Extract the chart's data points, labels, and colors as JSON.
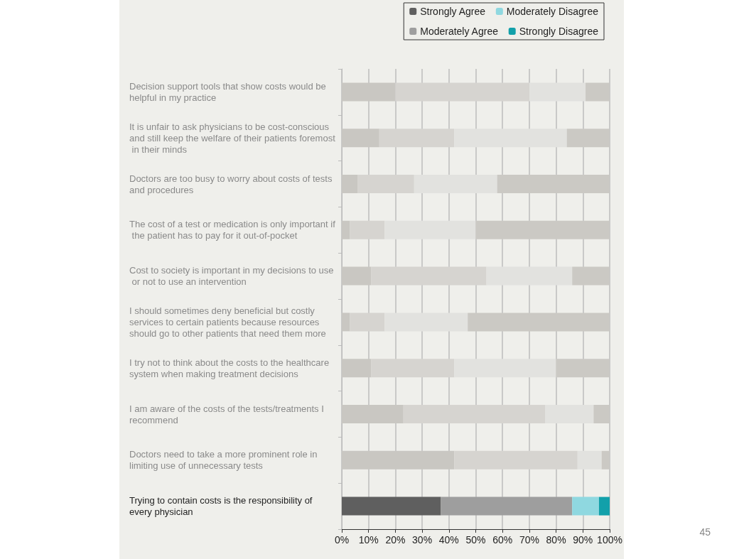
{
  "chart_data": {
    "type": "bar",
    "stacked": true,
    "orientation": "horizontal",
    "categories": [
      "Decision support tools that show costs would be helpful in my practice",
      "It is unfair to ask physicians to be cost-conscious and still keep the welfare of their patients foremost in their minds",
      "Doctors are too busy to worry about costs of tests and procedures",
      "The cost of a test or medication is only important if the patient has to pay for it out-of-pocket",
      "Cost to society is important in my decisions to use or not to use an intervention",
      "I should sometimes deny beneficial but costly services to certain patients because resources should go to other patients that need them more",
      "I try not to think about the costs to the healthcare system when making treatment decisions",
      "I am aware of the costs of the tests/treatments I recommend",
      "Doctors need to take a more prominent role in limiting use of unnecessary tests",
      "Trying to contain costs is the responsibility of every physician"
    ],
    "series": [
      {
        "name": "Strongly Agree",
        "color": "#5f5f5f",
        "colors": [
          "#c9c7c2",
          "#c9c7c2",
          "#c9c7c2",
          "#c9c7c2",
          "#c9c7c2",
          "#c9c7c2",
          "#c9c7c2",
          "#c9c7c2",
          "#c9c7c2",
          "#5f5f5f"
        ],
        "values": [
          20,
          14,
          6,
          3,
          11,
          3,
          11,
          23,
          42,
          37
        ]
      },
      {
        "name": "Moderately Agree",
        "color": "#9e9e9e",
        "colors": [
          "#d6d4d0",
          "#d6d4d0",
          "#d6d4d0",
          "#d6d4d0",
          "#d6d4d0",
          "#d6d4d0",
          "#d6d4d0",
          "#d6d4d0",
          "#d6d4d0",
          "#9e9e9e"
        ],
        "values": [
          50,
          28,
          21,
          13,
          43,
          13,
          31,
          53,
          46,
          49
        ]
      },
      {
        "name": "Moderately Disagree",
        "color": "#8fd8e0",
        "colors": [
          "#e2e2df",
          "#e2e2df",
          "#e2e2df",
          "#e2e2df",
          "#e2e2df",
          "#e2e2df",
          "#e2e2df",
          "#e2e2df",
          "#e2e2df",
          "#8fd8e0"
        ],
        "values": [
          21,
          42,
          31,
          34,
          32,
          31,
          38,
          18,
          9,
          10
        ]
      },
      {
        "name": "Strongly Disagree",
        "color": "#12a0aa",
        "colors": [
          "#cbc9c4",
          "#cbc9c4",
          "#cbc9c4",
          "#cbc9c4",
          "#cbc9c4",
          "#cbc9c4",
          "#cbc9c4",
          "#cbc9c4",
          "#cbc9c4",
          "#12a0aa"
        ],
        "values": [
          9,
          16,
          42,
          50,
          14,
          53,
          20,
          6,
          3,
          4
        ]
      }
    ],
    "xlim": [
      0,
      100
    ],
    "xticks": [
      {
        "value": 0,
        "label": "0%"
      },
      {
        "value": 10,
        "label": "10%"
      },
      {
        "value": 20,
        "label": "20%"
      },
      {
        "value": 30,
        "label": "30%"
      },
      {
        "value": 40,
        "label": "40%"
      },
      {
        "value": 50,
        "label": "50%"
      },
      {
        "value": 60,
        "label": "60%"
      },
      {
        "value": 70,
        "label": "70%"
      },
      {
        "value": 80,
        "label": "80%"
      },
      {
        "value": 90,
        "label": "90%"
      },
      {
        "value": 100,
        "label": "100%"
      }
    ],
    "grid": "x",
    "legend": "top right",
    "annotations": [
      "45"
    ]
  }
}
